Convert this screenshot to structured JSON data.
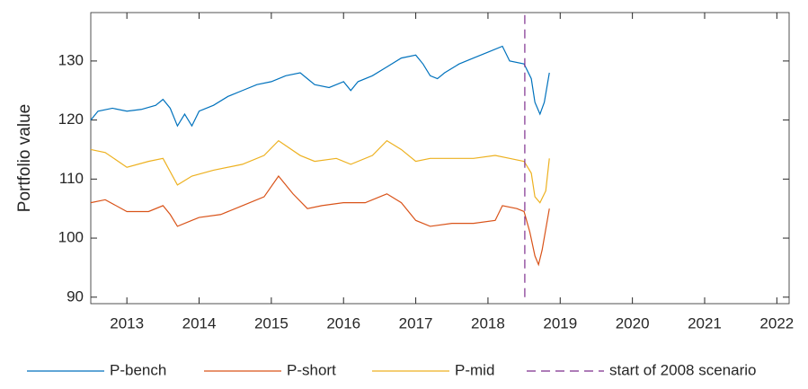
{
  "chart_data": {
    "type": "line",
    "ylabel": "Portfolio value",
    "xlim": [
      2012.5,
      2022.17
    ],
    "ylim": [
      88.9,
      138.2
    ],
    "xticks": [
      2013,
      2014,
      2015,
      2016,
      2017,
      2018,
      2019,
      2020,
      2021,
      2022
    ],
    "yticks": [
      90,
      100,
      110,
      120,
      130
    ],
    "grid": false,
    "legend": "bottom",
    "series": [
      {
        "name": "P-bench",
        "color": "#0072BD",
        "style": "solid",
        "x": [
          2012.5,
          2012.6,
          2012.8,
          2013.0,
          2013.2,
          2013.4,
          2013.5,
          2013.6,
          2013.7,
          2013.8,
          2013.9,
          2014.0,
          2014.2,
          2014.4,
          2014.6,
          2014.8,
          2015.0,
          2015.2,
          2015.4,
          2015.5,
          2015.6,
          2015.8,
          2016.0,
          2016.1,
          2016.2,
          2016.4,
          2016.6,
          2016.8,
          2017.0,
          2017.1,
          2017.2,
          2017.3,
          2017.4,
          2017.6,
          2017.8,
          2018.0,
          2018.2,
          2018.3,
          2018.5,
          2018.6,
          2018.65,
          2018.72,
          2018.78,
          2018.85
        ],
        "values": [
          120,
          121.5,
          122,
          121.5,
          121.8,
          122.5,
          123.5,
          122,
          119,
          121,
          119,
          121.5,
          122.5,
          124,
          125,
          126,
          126.5,
          127.5,
          128,
          127,
          126,
          125.5,
          126.5,
          125,
          126.5,
          127.5,
          129,
          130.5,
          131,
          129.5,
          127.5,
          127,
          128,
          129.5,
          130.5,
          131.5,
          132.5,
          130,
          129.5,
          127,
          123,
          121,
          123,
          128
        ]
      },
      {
        "name": "P-short",
        "color": "#D95319",
        "style": "solid",
        "x": [
          2012.5,
          2012.7,
          2013.0,
          2013.3,
          2013.5,
          2013.6,
          2013.7,
          2013.9,
          2014.0,
          2014.3,
          2014.6,
          2014.9,
          2015.1,
          2015.3,
          2015.5,
          2015.7,
          2016.0,
          2016.3,
          2016.6,
          2016.8,
          2017.0,
          2017.2,
          2017.5,
          2017.8,
          2018.1,
          2018.2,
          2018.4,
          2018.5,
          2018.58,
          2018.65,
          2018.7,
          2018.75,
          2018.85
        ],
        "values": [
          106,
          106.5,
          104.5,
          104.5,
          105.5,
          104,
          102,
          103,
          103.5,
          104,
          105.5,
          107,
          110.5,
          107.5,
          105,
          105.5,
          106,
          106,
          107.5,
          106,
          103,
          102,
          102.5,
          102.5,
          103,
          105.5,
          105,
          104.5,
          101,
          97,
          95.5,
          98,
          105
        ]
      },
      {
        "name": "P-mid",
        "color": "#EDB120",
        "style": "solid",
        "x": [
          2012.5,
          2012.7,
          2013.0,
          2013.3,
          2013.5,
          2013.7,
          2013.9,
          2014.2,
          2014.6,
          2014.9,
          2015.1,
          2015.4,
          2015.6,
          2015.9,
          2016.1,
          2016.4,
          2016.6,
          2016.8,
          2017.0,
          2017.2,
          2017.5,
          2017.8,
          2018.1,
          2018.3,
          2018.5,
          2018.6,
          2018.65,
          2018.72,
          2018.8,
          2018.85
        ],
        "values": [
          115,
          114.5,
          112,
          113,
          113.5,
          109,
          110.5,
          111.5,
          112.5,
          114,
          116.5,
          114,
          113,
          113.5,
          112.5,
          114,
          116.5,
          115,
          113,
          113.5,
          113.5,
          113.5,
          114,
          113.5,
          113,
          111,
          107,
          106,
          108,
          113.5
        ]
      },
      {
        "name": "start of 2008 scenario",
        "color": "#7E2F8E",
        "style": "dashed",
        "x": [
          2018.51,
          2018.51
        ],
        "values": [
          90,
          138.2
        ]
      }
    ]
  }
}
